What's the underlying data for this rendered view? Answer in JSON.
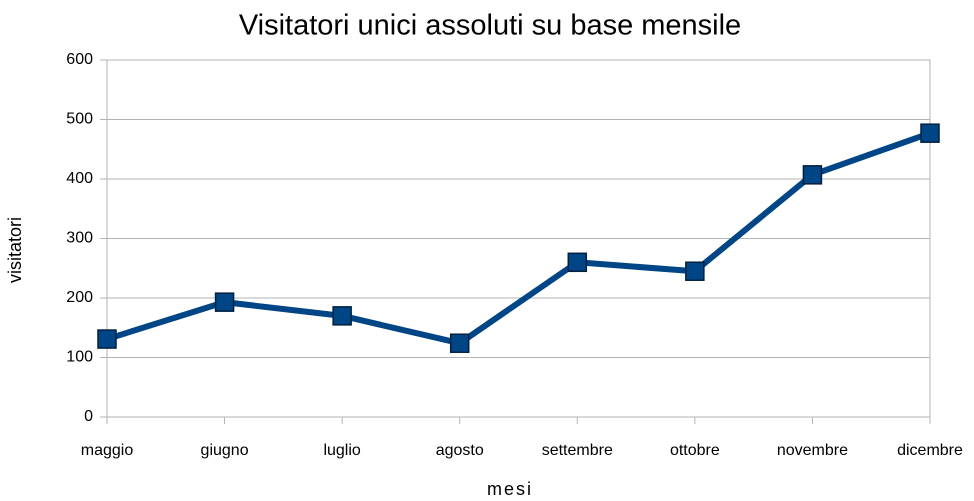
{
  "chart_data": {
    "type": "line",
    "title": "Visitatori unici assoluti su base mensile",
    "x_label": "mesi",
    "y_label": "visitatori",
    "categories": [
      "maggio",
      "giugno",
      "luglio",
      "agosto",
      "settembre",
      "ottobre",
      "novembre",
      "dicembre"
    ],
    "series": [
      {
        "name": "visitatori",
        "color": "#004586",
        "values": [
          131,
          193,
          170,
          124,
          260,
          245,
          407,
          477
        ]
      }
    ],
    "ylim": [
      0,
      600
    ],
    "yticks": [
      0,
      100,
      200,
      300,
      400,
      500,
      600
    ],
    "grid": true,
    "legend": false
  }
}
